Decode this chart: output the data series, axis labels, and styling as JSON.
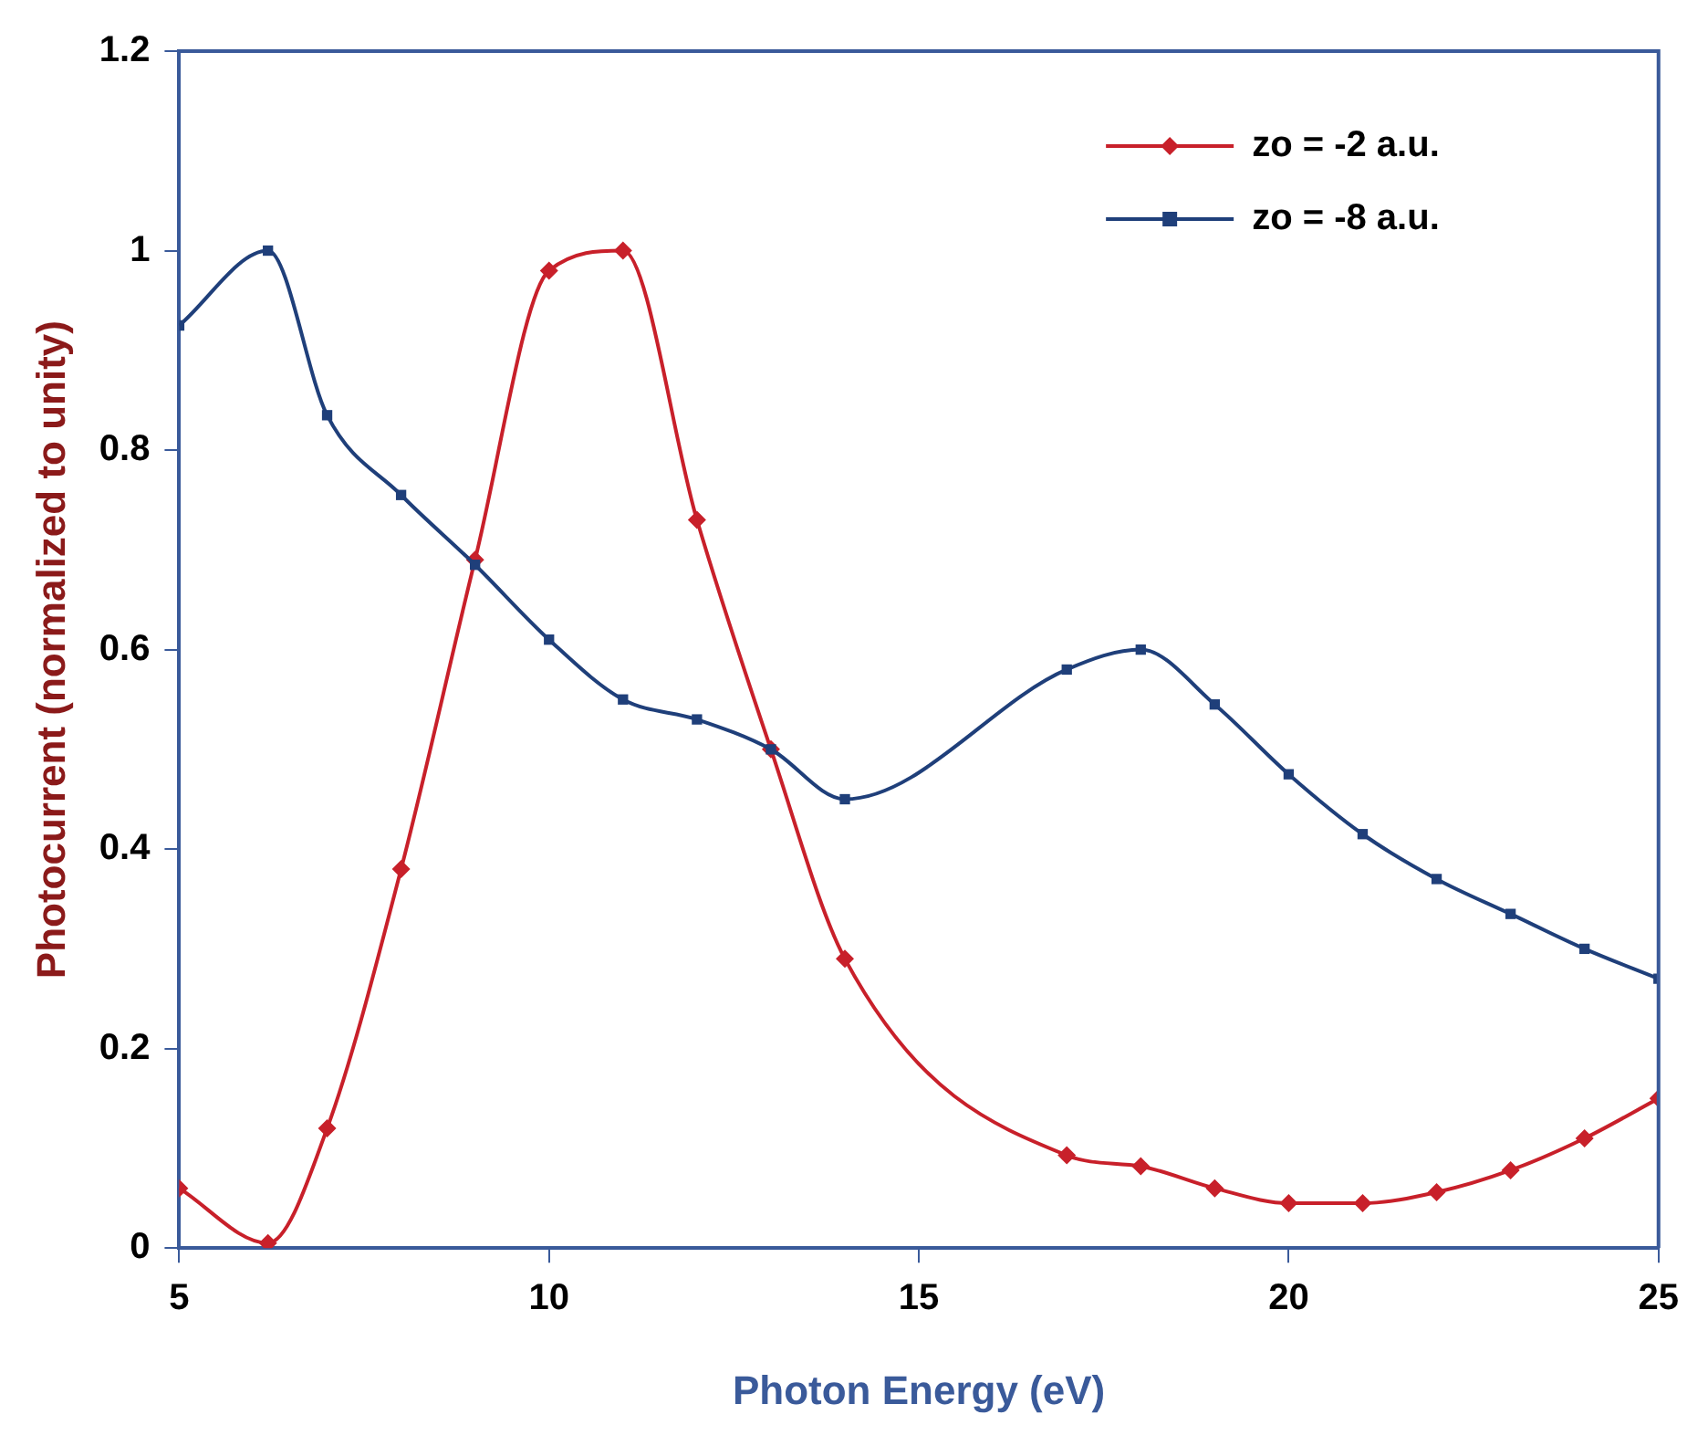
{
  "chart_data": {
    "type": "line",
    "xlabel": "Photon Energy (eV)",
    "ylabel": "Photocurrent (normalized to unity)",
    "x": [
      5,
      6.2,
      7,
      8,
      9,
      10,
      11,
      12,
      13,
      14,
      17,
      18,
      19,
      20,
      21,
      22,
      23,
      24,
      25
    ],
    "series": [
      {
        "name": "zo = -2 a.u.",
        "color": "#c8202a",
        "marker": "diamond",
        "values": [
          0.06,
          0.005,
          0.12,
          0.38,
          0.69,
          0.98,
          1.0,
          0.73,
          0.5,
          0.29,
          0.093,
          0.082,
          0.06,
          0.045,
          0.045,
          0.056,
          0.078,
          0.11,
          0.15
        ]
      },
      {
        "name": "zo = -8 a.u.",
        "color": "#1f3f7a",
        "marker": "square",
        "values": [
          0.925,
          1.0,
          0.835,
          0.755,
          0.685,
          0.61,
          0.55,
          0.53,
          0.5,
          0.45,
          0.58,
          0.6,
          0.545,
          0.475,
          0.415,
          0.37,
          0.335,
          0.3,
          0.27
        ]
      }
    ],
    "xlim": [
      5,
      25
    ],
    "xticks": [
      5,
      10,
      15,
      20,
      25
    ],
    "ylim": [
      0,
      1.2
    ],
    "yticks": [
      0,
      0.2,
      0.4,
      0.6,
      0.8,
      1,
      1.2
    ],
    "grid": false,
    "legend": "top right",
    "line_style": "solid"
  }
}
